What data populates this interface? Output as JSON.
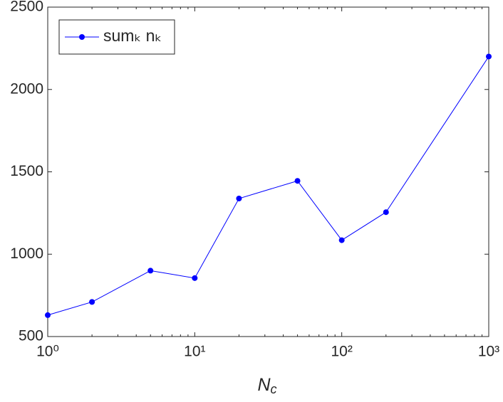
{
  "chart_data": {
    "type": "line",
    "x": [
      1,
      2,
      5,
      10,
      20,
      50,
      100,
      200,
      1000
    ],
    "series": [
      {
        "name": "sumₖ nₖ",
        "color": "#0000ff",
        "values": [
          630,
          710,
          900,
          855,
          1338,
          1445,
          1085,
          1255,
          2200
        ]
      }
    ],
    "xlabel": {
      "text": "N",
      "sub": "c"
    },
    "xscale": "log",
    "xlim": [
      1,
      1000
    ],
    "xticks": [
      {
        "value": 1,
        "label": "10⁰"
      },
      {
        "value": 10,
        "label": "10¹"
      },
      {
        "value": 100,
        "label": "10²"
      },
      {
        "value": 1000,
        "label": "10³"
      }
    ],
    "xminorticks": [
      2,
      3,
      4,
      5,
      6,
      7,
      8,
      9,
      20,
      30,
      40,
      50,
      60,
      70,
      80,
      90,
      200,
      300,
      400,
      500,
      600,
      700,
      800,
      900
    ],
    "ylim": [
      500,
      2500
    ],
    "yticks": [
      500,
      1000,
      1500,
      2000,
      2500
    ],
    "legend": "upper left"
  }
}
